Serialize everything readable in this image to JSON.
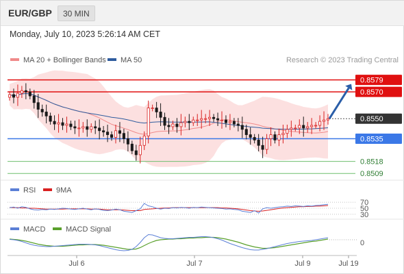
{
  "header": {
    "symbol": "EUR/GBP",
    "interval": "30 MIN"
  },
  "datetime": "Monday, July 10, 2023 5:26:14 AM CET",
  "credit": "Research © 2023 Trading Central",
  "legend_main": [
    {
      "label": "MA 20 + Bollinger Bands",
      "color": "#f08a8a"
    },
    {
      "label": "MA 50",
      "color": "#2f5c9e"
    }
  ],
  "legend_rsi": [
    {
      "label": "RSI",
      "color": "#5b7fd6"
    },
    {
      "label": "9MA",
      "color": "#d92020"
    }
  ],
  "legend_macd": [
    {
      "label": "MACD",
      "color": "#5b7fd6"
    },
    {
      "label": "MACD Signal",
      "color": "#5aa02c"
    }
  ],
  "colors": {
    "bull": "#d92020",
    "bear": "#1a1a1a",
    "resistance": "#e01010",
    "support": "#3b78e7",
    "green_level": "#6fbf6f",
    "arrow": "#2a5ea8",
    "bb_fill": "#fbd5d5",
    "current_tag": "#333333"
  },
  "chart_data": {
    "type": "candlestick",
    "price_axis": {
      "ylim": [
        0.8504,
        0.8587
      ]
    },
    "x_ticks": [
      "Jul 6",
      "Jul 7",
      "Jul 9",
      "Jul 19"
    ],
    "levels": [
      {
        "value": 0.8579,
        "label": "0.8579",
        "kind": "resistance",
        "tagged": true
      },
      {
        "value": 0.857,
        "label": "0.8570",
        "kind": "resistance",
        "tagged": true
      },
      {
        "value": 0.855,
        "label": "0.8550",
        "kind": "current",
        "tagged": true
      },
      {
        "value": 0.8535,
        "label": "0.8535",
        "kind": "support",
        "tagged": true
      },
      {
        "value": 0.8518,
        "label": "0.8518",
        "kind": "green",
        "tagged": false
      },
      {
        "value": 0.8509,
        "label": "0.8509",
        "kind": "green",
        "tagged": false
      }
    ],
    "closes": [
      0.8568,
      0.8566,
      0.8569,
      0.8571,
      0.857,
      0.8567,
      0.8562,
      0.8557,
      0.8555,
      0.8552,
      0.8548,
      0.8546,
      0.8547,
      0.8545,
      0.8546,
      0.8544,
      0.8543,
      0.8543,
      0.8544,
      0.8542,
      0.8544,
      0.8543,
      0.8541,
      0.854,
      0.8538,
      0.8536,
      0.8541,
      0.8539,
      0.8535,
      0.8531,
      0.8526,
      0.8523,
      0.853,
      0.8537,
      0.8558,
      0.8558,
      0.8555,
      0.8551,
      0.8545,
      0.8544,
      0.8546,
      0.8544,
      0.8547,
      0.8548,
      0.8547,
      0.8549,
      0.8549,
      0.855,
      0.855,
      0.8551,
      0.855,
      0.8549,
      0.8549,
      0.8547,
      0.8548,
      0.8546,
      0.8545,
      0.8542,
      0.8538,
      0.8536,
      0.8534,
      0.853,
      0.8527,
      0.8535,
      0.8538,
      0.8534,
      0.8538,
      0.8539,
      0.8542,
      0.8543,
      0.8543,
      0.8545,
      0.8543,
      0.8544,
      0.8545,
      0.8545,
      0.8548,
      0.8549,
      0.855
    ],
    "projection": {
      "from": 0.855,
      "to": 0.8579
    },
    "rsi": {
      "ticks": [
        70,
        50,
        30
      ],
      "values": [
        52,
        54,
        50,
        55,
        53,
        48,
        45,
        44,
        46,
        45,
        47,
        46,
        48,
        50,
        49,
        47,
        46,
        48,
        50,
        47,
        45,
        48,
        46,
        43,
        42,
        44,
        47,
        45,
        40,
        38,
        36,
        42,
        48,
        66,
        58,
        55,
        50,
        47,
        50,
        49,
        52,
        51,
        53,
        52,
        50,
        53,
        52,
        54,
        53,
        52,
        51,
        50,
        49,
        47,
        48,
        46,
        45,
        40,
        38,
        36,
        42,
        34,
        48,
        52,
        50,
        52,
        54,
        55,
        57,
        56,
        58,
        57,
        56,
        58,
        57,
        59,
        60,
        62,
        63
      ],
      "ma9": [
        53,
        52,
        52,
        51,
        51,
        50,
        50,
        49,
        48,
        47,
        47,
        47,
        47,
        47,
        48,
        48,
        48,
        48,
        48,
        48,
        47,
        47,
        47,
        46,
        45,
        45,
        45,
        45,
        44,
        43,
        42,
        42,
        42,
        46,
        47,
        48,
        49,
        50,
        51,
        51,
        52,
        52,
        52,
        52,
        52,
        52,
        52,
        52,
        52,
        52,
        52,
        52,
        51,
        51,
        50,
        49,
        48,
        46,
        44,
        42,
        41,
        40,
        41,
        43,
        45,
        47,
        49,
        51,
        52,
        53,
        54,
        55,
        55,
        56,
        56,
        57,
        57,
        58,
        59
      ]
    },
    "macd": {
      "ticks": [
        0
      ],
      "macd": [
        0.1,
        0.0,
        -0.2,
        -0.5,
        -0.9,
        -1.3,
        -1.6,
        -1.8,
        -1.9,
        -2.0,
        -2.0,
        -1.9,
        -1.8,
        -1.7,
        -1.6,
        -1.5,
        -1.4,
        -1.3,
        -1.3,
        -1.3,
        -1.4,
        -1.5,
        -1.7,
        -2.0,
        -2.3,
        -2.6,
        -2.9,
        -3.1,
        -3.2,
        -3.1,
        -2.8,
        -2.0,
        -0.8,
        0.6,
        1.5,
        1.4,
        1.0,
        0.6,
        0.4,
        0.3,
        0.3,
        0.4,
        0.5,
        0.6,
        0.7,
        0.7,
        0.8,
        0.9,
        0.9,
        0.8,
        0.6,
        0.3,
        -0.1,
        -0.6,
        -1.1,
        -1.5,
        -1.9,
        -2.3,
        -2.6,
        -2.9,
        -3.0,
        -3.0,
        -2.8,
        -2.6,
        -2.3,
        -2.0,
        -1.7,
        -1.4,
        -1.1,
        -0.9,
        -0.7,
        -0.5,
        -0.4,
        -0.3,
        -0.2,
        0.0,
        0.2,
        0.4,
        0.6
      ],
      "signal": [
        0.2,
        0.1,
        0.0,
        -0.2,
        -0.4,
        -0.7,
        -1.0,
        -1.3,
        -1.5,
        -1.7,
        -1.8,
        -1.9,
        -1.9,
        -1.9,
        -1.8,
        -1.7,
        -1.6,
        -1.5,
        -1.5,
        -1.4,
        -1.4,
        -1.4,
        -1.5,
        -1.6,
        -1.8,
        -2.0,
        -2.2,
        -2.4,
        -2.6,
        -2.8,
        -2.8,
        -2.7,
        -2.3,
        -1.7,
        -1.1,
        -0.6,
        -0.2,
        0.0,
        0.1,
        0.2,
        0.2,
        0.3,
        0.3,
        0.4,
        0.5,
        0.5,
        0.6,
        0.6,
        0.7,
        0.7,
        0.7,
        0.6,
        0.4,
        0.2,
        -0.1,
        -0.4,
        -0.7,
        -1.1,
        -1.5,
        -1.8,
        -2.1,
        -2.3,
        -2.5,
        -2.5,
        -2.4,
        -2.3,
        -2.1,
        -1.9,
        -1.7,
        -1.5,
        -1.3,
        -1.1,
        -0.9,
        -0.7,
        -0.5,
        -0.4,
        -0.2,
        0.0,
        0.2
      ]
    }
  }
}
